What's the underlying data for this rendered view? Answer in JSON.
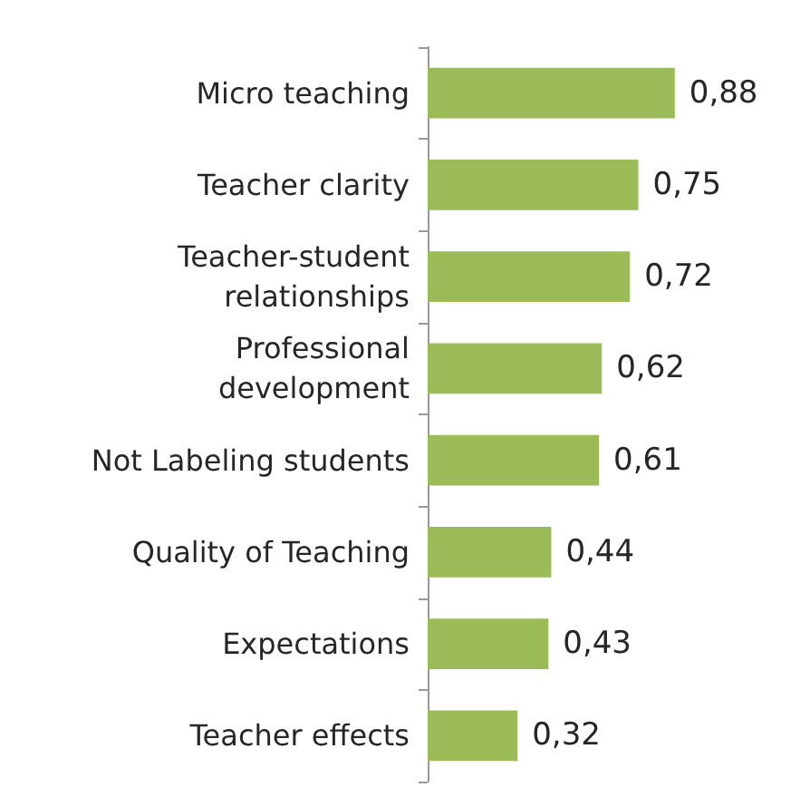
{
  "chart_data": {
    "type": "bar",
    "orientation": "horizontal",
    "categories": [
      "Micro teaching",
      "Teacher clarity",
      "Teacher-student\nrelationships",
      "Professional\ndevelopment",
      "Not Labeling students",
      "Quality of Teaching",
      "Expectations",
      "Teacher effects"
    ],
    "values": [
      0.88,
      0.75,
      0.72,
      0.62,
      0.61,
      0.44,
      0.43,
      0.32
    ],
    "value_labels": [
      "0,88",
      "0,75",
      "0,72",
      "0,62",
      "0,61",
      "0,44",
      "0,43",
      "0,32"
    ],
    "color": "#9bbb59"
  }
}
